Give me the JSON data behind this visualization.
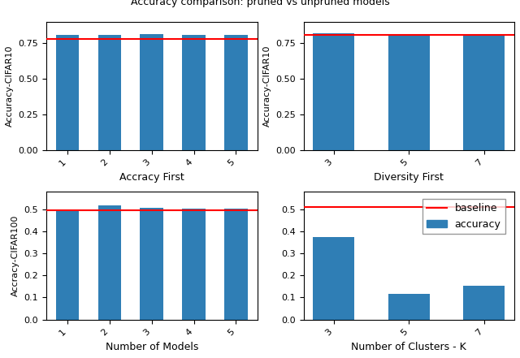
{
  "title": "Accuracy comparison: pruned vs unpruned models",
  "top_left": {
    "xlabel": "Accracy First",
    "ylabel": "Accuracy-CIFAR10",
    "x_labels": [
      "1",
      "2",
      "3",
      "4",
      "5"
    ],
    "values": [
      0.808,
      0.808,
      0.812,
      0.808,
      0.808
    ],
    "baseline": 0.782,
    "ylim": [
      0.0,
      0.9
    ],
    "yticks": [
      0.0,
      0.25,
      0.5,
      0.75
    ]
  },
  "top_right": {
    "xlabel": "Diversity First",
    "ylabel": "Accuracy-CIFAR10",
    "x_labels": [
      "3",
      "5",
      "7"
    ],
    "values": [
      0.818,
      0.81,
      0.8
    ],
    "baseline": 0.808,
    "ylim": [
      0.0,
      0.9
    ],
    "yticks": [
      0.0,
      0.25,
      0.5,
      0.75
    ]
  },
  "bottom_left": {
    "xlabel": "Number of Models",
    "ylabel": "Accracy-CIFAR100",
    "x_labels": [
      "1",
      "2",
      "3",
      "4",
      "5"
    ],
    "values": [
      0.492,
      0.516,
      0.508,
      0.503,
      0.503
    ],
    "baseline": 0.495,
    "ylim": [
      0.0,
      0.58
    ],
    "yticks": [
      0.0,
      0.1,
      0.2,
      0.3,
      0.4,
      0.5
    ]
  },
  "bottom_right": {
    "xlabel": "Number of Clusters - K",
    "ylabel": "",
    "x_labels": [
      "3",
      "5",
      "7"
    ],
    "values": [
      0.375,
      0.118,
      0.155
    ],
    "baseline": 0.51,
    "ylim": [
      0.0,
      0.58
    ],
    "yticks": [
      0.0,
      0.1,
      0.2,
      0.3,
      0.4,
      0.5
    ]
  },
  "bar_color": "#2f7eb5",
  "baseline_color": "red",
  "legend_labels": [
    "baseline",
    "accuracy"
  ]
}
